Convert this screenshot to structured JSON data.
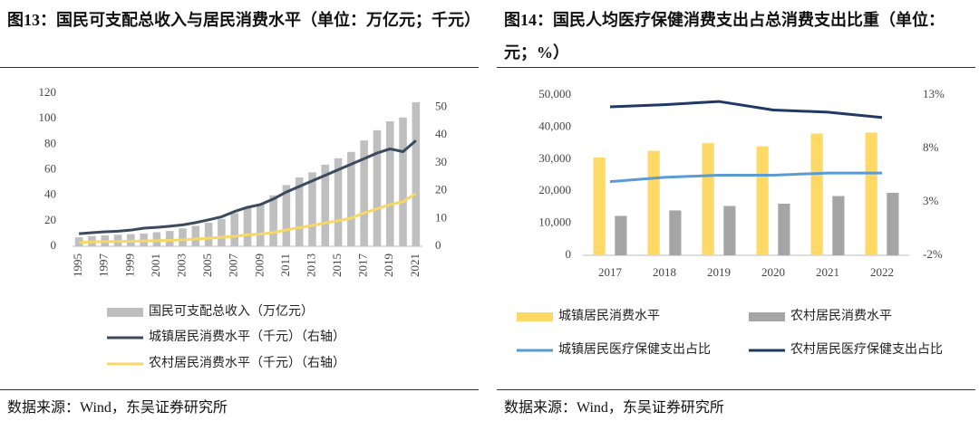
{
  "chart_data": [
    {
      "type": "bar",
      "title": "图13：国民可支配总收入与居民消费水平（单位：万亿元；千元）",
      "categories": [
        "1995",
        null,
        "1997",
        null,
        "1999",
        null,
        "2001",
        null,
        "2003",
        null,
        "2005",
        null,
        "2007",
        null,
        "2009",
        null,
        "2011",
        null,
        "2013",
        null,
        "2015",
        null,
        "2017",
        null,
        "2019",
        null,
        "2021"
      ],
      "series": [
        {
          "name": "国民可支配总收入（万亿元）",
          "type": "bar",
          "color": "#bfbfbf",
          "values": [
            7,
            8,
            8.5,
            9,
            9.5,
            10,
            11,
            12,
            14,
            16,
            18.5,
            21.5,
            26,
            30,
            33,
            40,
            48,
            54,
            58,
            64,
            69,
            74,
            83,
            91,
            98,
            101,
            113
          ]
        },
        {
          "name": "城镇居民消费水平（千元）（右轴）",
          "type": "line",
          "axis": "y2",
          "color": "#3b4a5e",
          "values": [
            4.5,
            4.9,
            5.2,
            5.4,
            5.8,
            6.5,
            6.8,
            7.2,
            7.7,
            8.5,
            9.5,
            10.6,
            12.5,
            14,
            15,
            17,
            19.5,
            21.5,
            23.5,
            25.5,
            27.5,
            29.5,
            31.5,
            33.5,
            35,
            34,
            38
          ]
        },
        {
          "name": "农村居民消费水平（千元）（右轴）",
          "type": "line",
          "axis": "y2",
          "color": "#f7d766",
          "values": [
            1.3,
            1.6,
            1.7,
            1.7,
            1.8,
            1.9,
            2,
            2.1,
            2.3,
            2.6,
            2.9,
            3.2,
            3.6,
            4.1,
            4.4,
            4.9,
            5.9,
            6.7,
            7.5,
            8.4,
            9.2,
            10.1,
            12,
            13.5,
            15,
            16,
            19
          ]
        }
      ],
      "ylim": [
        0,
        120
      ],
      "yticks": [
        0,
        20,
        40,
        60,
        80,
        100,
        120
      ],
      "y2lim": [
        0,
        55
      ],
      "y2ticks": [
        0,
        10,
        20,
        30,
        40,
        50
      ],
      "source": "数据来源：Wind，东吴证券研究所"
    },
    {
      "type": "bar",
      "title": "图14：国民人均医疗保健消费支出占总消费支出比重（单位：元；%）",
      "categories": [
        "2017",
        "2018",
        "2019",
        "2020",
        "2021",
        "2022"
      ],
      "series": [
        {
          "name": "城镇居民消费水平",
          "type": "bar",
          "color": "#ffd966",
          "values": [
            30500,
            32600,
            35000,
            34000,
            38000,
            38300
          ]
        },
        {
          "name": "农村居民消费水平",
          "type": "bar",
          "color": "#a5a5a5",
          "values": [
            12300,
            14000,
            15400,
            16100,
            18500,
            19500
          ]
        },
        {
          "name": "城镇居民医疗保健支出占比",
          "type": "line",
          "axis": "y2",
          "color": "#5b9bd5",
          "values": [
            4.9,
            5.3,
            5.5,
            5.5,
            5.7,
            5.7
          ]
        },
        {
          "name": "农村居民医疗保健支出占比",
          "type": "line",
          "axis": "y2",
          "color": "#1f3864",
          "values": [
            11.9,
            12.1,
            12.4,
            11.6,
            11.4,
            10.9
          ]
        }
      ],
      "ylim": [
        0,
        50000
      ],
      "yticks": [
        0,
        {
          "value": 10000,
          "label": "10,000"
        },
        {
          "value": 20000,
          "label": "20,000"
        },
        {
          "value": 30000,
          "label": "30,000"
        },
        {
          "value": 40000,
          "label": "40,000"
        },
        {
          "value": 50000,
          "label": "50,000"
        }
      ],
      "y2lim": [
        -2,
        13
      ],
      "y2ticks": [
        {
          "value": -2,
          "label": "-2%"
        },
        {
          "value": 3,
          "label": "3%"
        },
        {
          "value": 8,
          "label": "8%"
        },
        {
          "value": 13,
          "label": "13%"
        }
      ],
      "source": "数据来源：Wind，东吴证券研究所"
    }
  ]
}
